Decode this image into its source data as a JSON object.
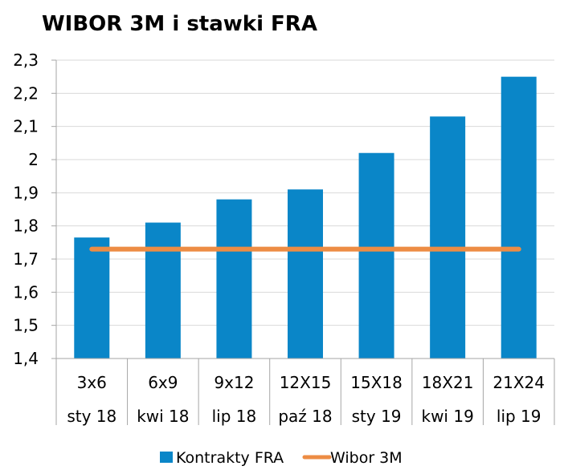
{
  "chart_data": {
    "type": "bar",
    "title": "WIBOR 3M i stawki FRA",
    "categories": [
      [
        "3x6",
        "sty 18"
      ],
      [
        "6x9",
        "kwi 18"
      ],
      [
        "9x12",
        "lip 18"
      ],
      [
        "12X15",
        "paź 18"
      ],
      [
        "15X18",
        "sty 19"
      ],
      [
        "18X21",
        "kwi 19"
      ],
      [
        "21X24",
        "lip 19"
      ]
    ],
    "series": [
      {
        "name": "Kontrakty FRA",
        "type": "bar",
        "color": "#0a86c8",
        "values": [
          1.765,
          1.81,
          1.88,
          1.91,
          2.02,
          2.13,
          2.25
        ]
      },
      {
        "name": "Wibor 3M",
        "type": "line",
        "color": "#ed8c44",
        "values": [
          1.73,
          1.73,
          1.73,
          1.73,
          1.73,
          1.73,
          1.73
        ]
      }
    ],
    "yticks": [
      "1,4",
      "1,5",
      "1,6",
      "1,7",
      "1,8",
      "1,9",
      "2",
      "2,1",
      "2,2",
      "2,3"
    ],
    "ylim": [
      1.4,
      2.3
    ],
    "grid": true,
    "legend": "bottom"
  }
}
